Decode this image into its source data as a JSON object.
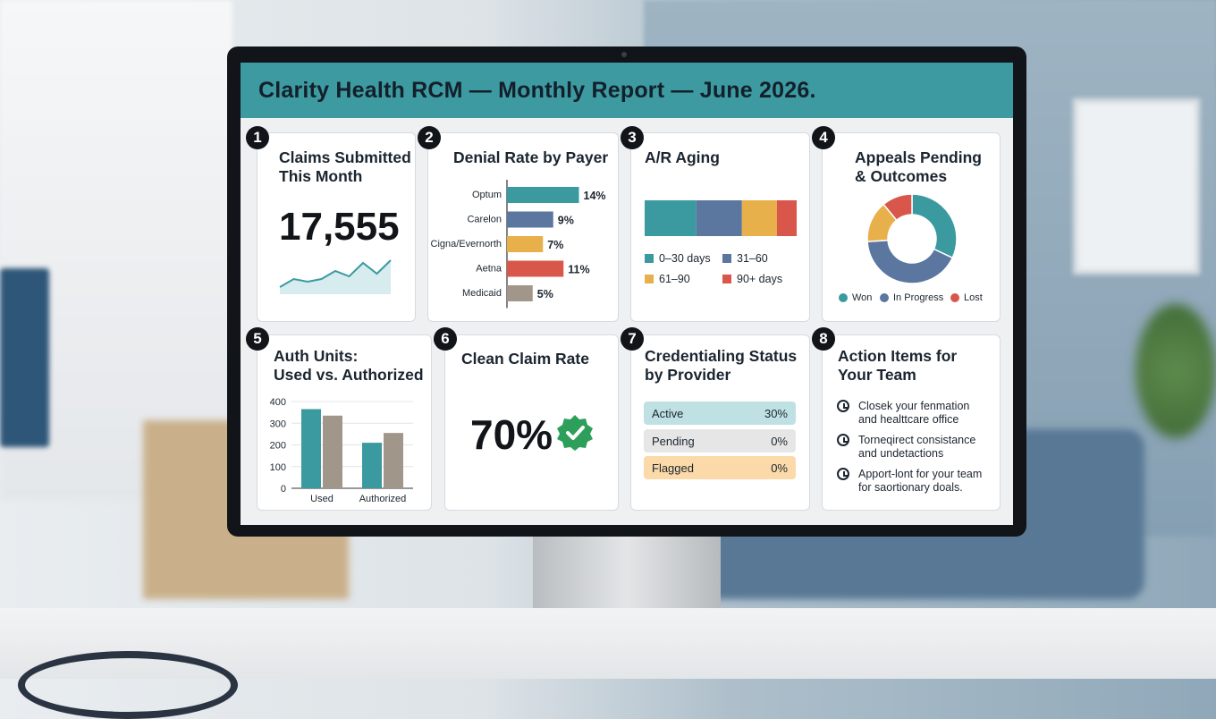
{
  "header": {
    "title": "Clarity Health RCM — Monthly Report — June 2026."
  },
  "cards": {
    "claims": {
      "num": "1",
      "title_line1": "Claims Submitted",
      "title_line2": "This Month",
      "value": "17,555"
    },
    "denial": {
      "num": "2",
      "title": "Denial Rate by Payer"
    },
    "ar": {
      "num": "3",
      "title": "A/R Aging"
    },
    "appeals": {
      "num": "4",
      "title_line1": "Appeals Pending",
      "title_line2": "& Outcomes"
    },
    "auth": {
      "num": "5",
      "title_line1": "Auth Units:",
      "title_line2": "Used vs. Authorized"
    },
    "clean": {
      "num": "6",
      "title": "Clean Claim Rate",
      "value": "70%"
    },
    "cred": {
      "num": "7",
      "title_line1": "Credentialing Status",
      "title_line2": "by Provider",
      "rows": [
        {
          "label": "Active",
          "value": "30%",
          "color": "#bfe1e4"
        },
        {
          "label": "Pending",
          "value": "0%",
          "color": "#e6e6e6"
        },
        {
          "label": "Flagged",
          "value": "0%",
          "color": "#fbd9a8"
        }
      ]
    },
    "actions": {
      "num": "8",
      "title_line1": "Action Items for",
      "title_line2": "Your Team",
      "items": [
        {
          "line1": "Closek your fenmation",
          "line2": "and healttcare office"
        },
        {
          "line1": "Torneqirect consistance",
          "line2": "and undetactions"
        },
        {
          "line1": "Apport-lont for your team",
          "line2": "for saortionary doals."
        }
      ]
    }
  },
  "chart_data": [
    {
      "id": "claims-trend",
      "type": "area",
      "x": [
        1,
        2,
        3,
        4,
        5,
        6,
        7,
        8,
        9
      ],
      "values": [
        2,
        5,
        4,
        5,
        8,
        6,
        11,
        7,
        12
      ]
    },
    {
      "id": "denial-rate",
      "type": "bar",
      "orientation": "horizontal",
      "categories": [
        "Optum",
        "Carelon",
        "Cigna/Evernorth",
        "Aetna",
        "Medicaid"
      ],
      "values": [
        14,
        9,
        7,
        11,
        5
      ],
      "value_labels": [
        "14%",
        "9%",
        "7%",
        "11%",
        "5%"
      ],
      "colors": [
        "#3a9aa0",
        "#5b77a0",
        "#e8b04a",
        "#d9574a",
        "#a0968a"
      ],
      "xlim": [
        0,
        16
      ]
    },
    {
      "id": "ar-aging",
      "type": "bar",
      "stacked": true,
      "series": [
        {
          "name": "0–30 days",
          "values": [
            34
          ],
          "color": "#3a9aa0"
        },
        {
          "name": "31–60",
          "values": [
            30
          ],
          "color": "#5b77a0"
        },
        {
          "name": "61–90",
          "values": [
            23
          ],
          "color": "#e8b04a"
        },
        {
          "name": "90+ days",
          "values": [
            13
          ],
          "color": "#d9574a"
        }
      ]
    },
    {
      "id": "appeals",
      "type": "pie",
      "donut": true,
      "slices": [
        {
          "name": "Won",
          "value": 32,
          "color": "#3a9aa0"
        },
        {
          "name": "In Progress",
          "value": 42,
          "color": "#5b77a0"
        },
        {
          "name": "",
          "value": 15,
          "color": "#e8b04a"
        },
        {
          "name": "Lost",
          "value": 11,
          "color": "#d9574a"
        }
      ]
    },
    {
      "id": "auth-units",
      "type": "bar",
      "categories": [
        "Used",
        "Authorized"
      ],
      "series": [
        {
          "values": [
            365,
            210
          ],
          "color": "#3a9aa0"
        },
        {
          "values": [
            335,
            255
          ],
          "color": "#a0968a"
        }
      ],
      "ylim": [
        0,
        400
      ],
      "yticks": [
        "0",
        "100",
        "200",
        "300",
        "400"
      ]
    }
  ]
}
